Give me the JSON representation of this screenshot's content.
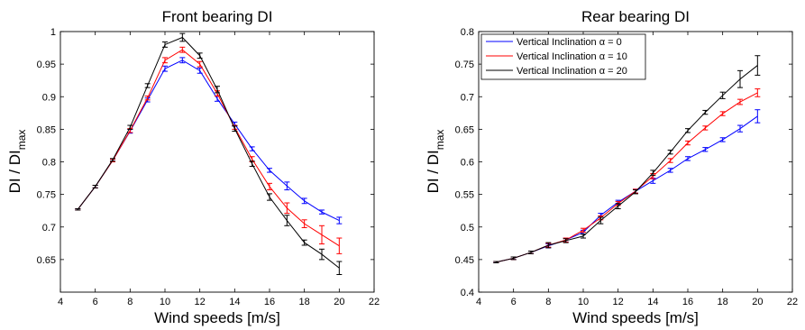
{
  "chart_data": [
    {
      "type": "line",
      "title": "Front bearing DI",
      "xlabel": "Wind speeds [m/s]",
      "ylabel_main": "DI / DI",
      "ylabel_sub": "max",
      "xlim": [
        4,
        22
      ],
      "ylim": [
        0.6,
        1.0
      ],
      "xticks": [
        4,
        6,
        8,
        10,
        12,
        14,
        16,
        18,
        20,
        22
      ],
      "yticks": [
        0.65,
        0.7,
        0.75,
        0.8,
        0.85,
        0.9,
        0.95,
        1.0
      ],
      "ytick_labels": [
        "0.65",
        "0.7",
        "0.75",
        "0.8",
        "0.85",
        "0.9",
        "0.95",
        "1"
      ],
      "grid": false,
      "x": [
        5,
        6,
        7,
        8,
        9,
        10,
        11,
        12,
        13,
        14,
        15,
        16,
        17,
        18,
        19,
        20
      ],
      "series": [
        {
          "color": "#0000ff",
          "values": [
            0.727,
            0.762,
            0.802,
            0.847,
            0.895,
            0.943,
            0.956,
            0.94,
            0.897,
            0.858,
            0.82,
            0.787,
            0.763,
            0.74,
            0.723,
            0.71
          ],
          "errors": [
            0.001,
            0.002,
            0.002,
            0.003,
            0.003,
            0.004,
            0.004,
            0.004,
            0.004,
            0.003,
            0.003,
            0.003,
            0.006,
            0.004,
            0.003,
            0.005
          ]
        },
        {
          "color": "#ff0000",
          "values": [
            0.727,
            0.762,
            0.802,
            0.848,
            0.898,
            0.956,
            0.972,
            0.95,
            0.905,
            0.853,
            0.804,
            0.762,
            0.729,
            0.705,
            0.688,
            0.671
          ],
          "errors": [
            0.001,
            0.002,
            0.002,
            0.003,
            0.003,
            0.004,
            0.004,
            0.004,
            0.004,
            0.003,
            0.004,
            0.005,
            0.008,
            0.006,
            0.014,
            0.012
          ]
        },
        {
          "color": "#000000",
          "values": [
            0.727,
            0.762,
            0.803,
            0.853,
            0.917,
            0.98,
            0.991,
            0.963,
            0.911,
            0.851,
            0.797,
            0.746,
            0.71,
            0.676,
            0.658,
            0.637
          ],
          "errors": [
            0.001,
            0.002,
            0.002,
            0.003,
            0.003,
            0.004,
            0.006,
            0.004,
            0.005,
            0.004,
            0.004,
            0.005,
            0.008,
            0.004,
            0.008,
            0.01
          ]
        }
      ]
    },
    {
      "type": "line",
      "title": "Rear bearing DI",
      "xlabel": "Wind speeds [m/s]",
      "ylabel_main": "DI / DI",
      "ylabel_sub": "max",
      "xlim": [
        4,
        22
      ],
      "ylim": [
        0.4,
        0.8
      ],
      "xticks": [
        4,
        6,
        8,
        10,
        12,
        14,
        16,
        18,
        20,
        22
      ],
      "yticks": [
        0.4,
        0.45,
        0.5,
        0.55,
        0.6,
        0.65,
        0.7,
        0.75,
        0.8
      ],
      "ytick_labels": [
        "0.4",
        "0.45",
        "0.5",
        "0.55",
        "0.6",
        "0.65",
        "0.7",
        "0.75",
        "0.8"
      ],
      "grid": false,
      "legend_position": "top-left",
      "x": [
        5,
        6,
        7,
        8,
        9,
        10,
        11,
        12,
        13,
        14,
        15,
        16,
        17,
        18,
        19,
        20
      ],
      "series": [
        {
          "name": "Vertical Inclination α = 0",
          "color": "#0000ff",
          "values": [
            0.446,
            0.452,
            0.461,
            0.471,
            0.48,
            0.492,
            0.518,
            0.538,
            0.555,
            0.571,
            0.587,
            0.605,
            0.619,
            0.634,
            0.651,
            0.67
          ],
          "errors": [
            0.001,
            0.002,
            0.002,
            0.003,
            0.003,
            0.003,
            0.003,
            0.003,
            0.003,
            0.004,
            0.003,
            0.003,
            0.003,
            0.003,
            0.005,
            0.01
          ]
        },
        {
          "name": "Vertical Inclination α = 10",
          "color": "#ff0000",
          "values": [
            0.446,
            0.452,
            0.461,
            0.472,
            0.48,
            0.495,
            0.514,
            0.536,
            0.555,
            0.578,
            0.602,
            0.629,
            0.652,
            0.674,
            0.692,
            0.706
          ],
          "errors": [
            0.001,
            0.002,
            0.002,
            0.003,
            0.003,
            0.003,
            0.003,
            0.003,
            0.003,
            0.004,
            0.003,
            0.003,
            0.003,
            0.003,
            0.004,
            0.006
          ]
        },
        {
          "name": "Vertical Inclination α = 20",
          "color": "#000000",
          "values": [
            0.446,
            0.452,
            0.461,
            0.472,
            0.479,
            0.486,
            0.51,
            0.532,
            0.554,
            0.583,
            0.615,
            0.648,
            0.676,
            0.702,
            0.727,
            0.748
          ],
          "errors": [
            0.001,
            0.002,
            0.002,
            0.004,
            0.003,
            0.003,
            0.005,
            0.004,
            0.003,
            0.004,
            0.003,
            0.003,
            0.003,
            0.005,
            0.013,
            0.015
          ]
        }
      ]
    }
  ]
}
